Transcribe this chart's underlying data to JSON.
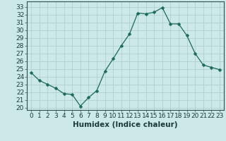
{
  "x": [
    0,
    1,
    2,
    3,
    4,
    5,
    6,
    7,
    8,
    9,
    10,
    11,
    12,
    13,
    14,
    15,
    16,
    17,
    18,
    19,
    20,
    21,
    22,
    23
  ],
  "y": [
    24.5,
    23.5,
    23.0,
    22.5,
    21.8,
    21.7,
    20.2,
    21.3,
    22.2,
    24.7,
    26.3,
    28.0,
    29.5,
    32.2,
    32.1,
    32.3,
    32.9,
    30.8,
    30.8,
    29.3,
    27.0,
    25.5,
    25.2,
    24.9
  ],
  "line_color": "#1a6b5a",
  "marker": "D",
  "marker_size": 2.5,
  "bg_color": "#cce8e8",
  "grid_color": "#aacccc",
  "axis_color": "#2f4f4f",
  "text_color": "#1a3a3a",
  "xlabel": "Humidex (Indice chaleur)",
  "ylabel_ticks": [
    20,
    21,
    22,
    23,
    24,
    25,
    26,
    27,
    28,
    29,
    30,
    31,
    32,
    33
  ],
  "ylim": [
    19.7,
    33.7
  ],
  "xlim": [
    -0.5,
    23.5
  ],
  "xticks": [
    0,
    1,
    2,
    3,
    4,
    5,
    6,
    7,
    8,
    9,
    10,
    11,
    12,
    13,
    14,
    15,
    16,
    17,
    18,
    19,
    20,
    21,
    22,
    23
  ],
  "tick_fontsize": 6.5,
  "label_fontsize": 7.5
}
